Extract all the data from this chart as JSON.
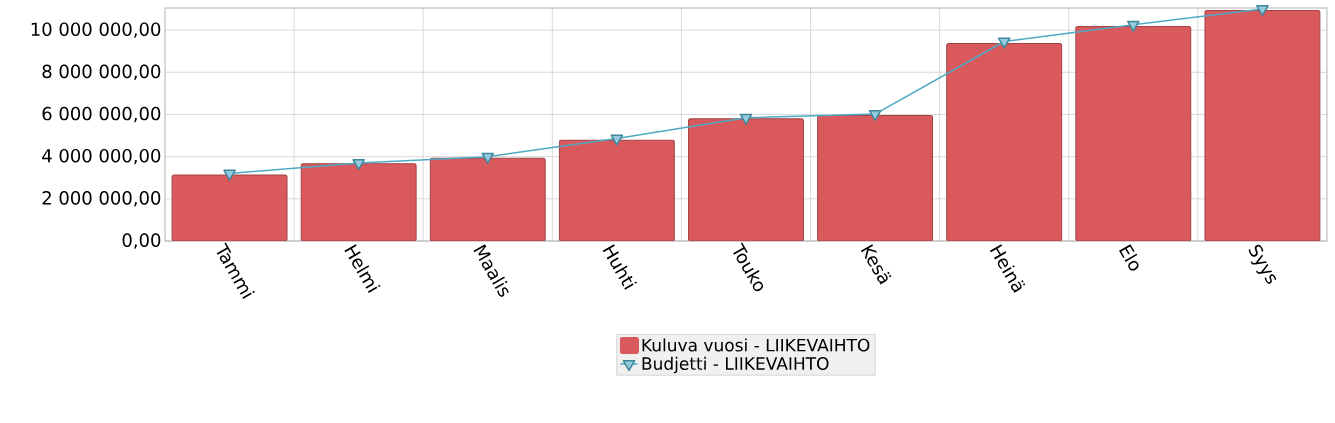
{
  "chart_data": {
    "type": "bar",
    "categories": [
      "Tammi",
      "Helmi",
      "Maalis",
      "Huhti",
      "Touko",
      "Kesä",
      "Heinä",
      "Elo",
      "Syys"
    ],
    "series": [
      {
        "name": "Kuluva vuosi - LIIKEVAIHTO",
        "color": "#d9595d",
        "values": [
          3130000,
          3660000,
          3930000,
          4780000,
          5800000,
          5950000,
          9370000,
          10170000,
          10930000
        ]
      },
      {
        "name": "Budjetti - LIIKEVAIHTO",
        "type": "line",
        "color": "#4fa9c4",
        "marker": "triangle",
        "values": [
          3200000,
          3700000,
          4000000,
          4860000,
          5850000,
          6020000,
          9460000,
          10260000,
          11000000
        ]
      }
    ],
    "ylim": [
      0,
      11050000
    ],
    "yticks": [
      {
        "value": 0,
        "label": "0,00"
      },
      {
        "value": 2000000,
        "label": "2 000 000,00"
      },
      {
        "value": 4000000,
        "label": "4 000 000,00"
      },
      {
        "value": 6000000,
        "label": "6 000 000,00"
      },
      {
        "value": 8000000,
        "label": "8 000 000,00"
      },
      {
        "value": 10000000,
        "label": "10 000 000,00"
      }
    ],
    "grid": true,
    "legend": "bottom"
  }
}
